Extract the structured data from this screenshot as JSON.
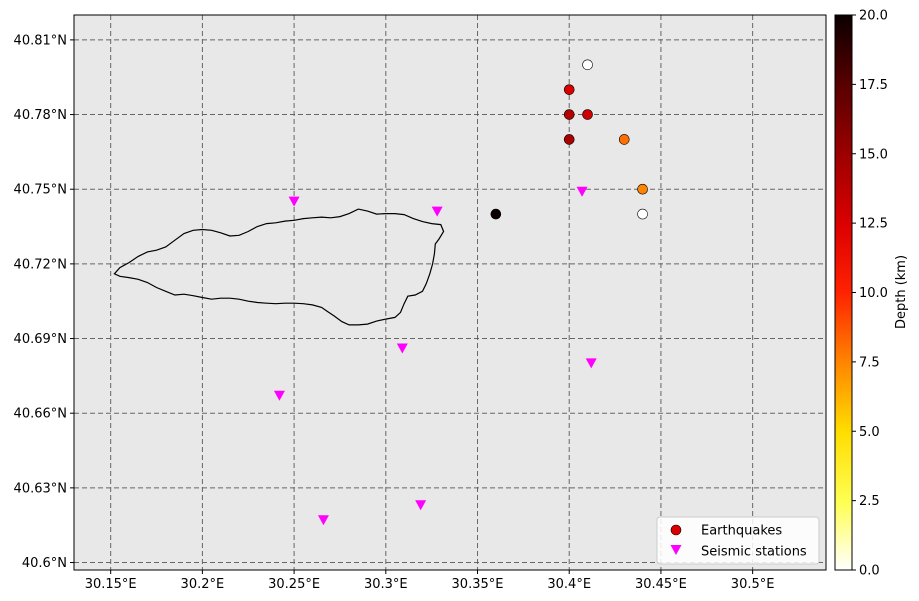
{
  "chart_data": {
    "type": "scatter",
    "title": "",
    "xlim": [
      30.13,
      30.54
    ],
    "ylim": [
      40.597,
      40.82
    ],
    "x_ticks": [
      30.15,
      30.2,
      30.25,
      30.3,
      30.35,
      30.4,
      30.45,
      30.5
    ],
    "x_tick_labels": [
      "30.15°E",
      "30.2°E",
      "30.25°E",
      "30.3°E",
      "30.35°E",
      "30.4°E",
      "30.45°E",
      "30.5°E"
    ],
    "y_ticks": [
      40.6,
      40.63,
      40.66,
      40.69,
      40.72,
      40.75,
      40.78,
      40.81
    ],
    "y_tick_labels": [
      "40.6°N",
      "40.63°N",
      "40.66°N",
      "40.69°N",
      "40.72°N",
      "40.75°N",
      "40.78°N",
      "40.81°N"
    ],
    "grid": true,
    "background": "#e8e8e8",
    "series": [
      {
        "name": "Earthquakes",
        "marker": "circle",
        "color_by": "depth",
        "points": [
          {
            "lon": 30.41,
            "lat": 40.8,
            "depth": 0.0
          },
          {
            "lon": 30.4,
            "lat": 40.79,
            "depth": 12.5
          },
          {
            "lon": 30.4,
            "lat": 40.78,
            "depth": 14.0
          },
          {
            "lon": 30.41,
            "lat": 40.78,
            "depth": 13.0
          },
          {
            "lon": 30.4,
            "lat": 40.77,
            "depth": 14.5
          },
          {
            "lon": 30.43,
            "lat": 40.77,
            "depth": 8.0
          },
          {
            "lon": 30.44,
            "lat": 40.75,
            "depth": 7.5
          },
          {
            "lon": 30.36,
            "lat": 40.74,
            "depth": 20.0
          },
          {
            "lon": 30.44,
            "lat": 40.74,
            "depth": 0.0
          }
        ]
      },
      {
        "name": "Seismic stations",
        "marker": "triangle-down",
        "color": "#ff00ff",
        "points": [
          {
            "lon": 30.25,
            "lat": 40.745
          },
          {
            "lon": 30.328,
            "lat": 40.741
          },
          {
            "lon": 30.407,
            "lat": 40.749
          },
          {
            "lon": 30.309,
            "lat": 40.686
          },
          {
            "lon": 30.412,
            "lat": 40.68
          },
          {
            "lon": 30.242,
            "lat": 40.667
          },
          {
            "lon": 30.319,
            "lat": 40.623
          },
          {
            "lon": 30.266,
            "lat": 40.617
          }
        ]
      }
    ],
    "outline": [
      [
        30.152,
        40.716
      ],
      [
        30.155,
        40.7185
      ],
      [
        30.16,
        40.7205
      ],
      [
        30.165,
        40.723
      ],
      [
        30.17,
        40.7248
      ],
      [
        30.175,
        40.7255
      ],
      [
        30.18,
        40.7268
      ],
      [
        30.185,
        40.7295
      ],
      [
        30.19,
        40.7322
      ],
      [
        30.195,
        40.7335
      ],
      [
        30.2,
        40.7338
      ],
      [
        30.205,
        40.7335
      ],
      [
        30.21,
        40.7325
      ],
      [
        30.215,
        40.7312
      ],
      [
        30.22,
        40.7315
      ],
      [
        30.225,
        40.733
      ],
      [
        30.23,
        40.735
      ],
      [
        30.235,
        40.7362
      ],
      [
        30.24,
        40.7365
      ],
      [
        30.245,
        40.7372
      ],
      [
        30.25,
        40.7375
      ],
      [
        30.255,
        40.7382
      ],
      [
        30.26,
        40.7385
      ],
      [
        30.265,
        40.7388
      ],
      [
        30.27,
        40.7385
      ],
      [
        30.275,
        40.739
      ],
      [
        30.28,
        40.7402
      ],
      [
        30.285,
        40.742
      ],
      [
        30.29,
        40.7412
      ],
      [
        30.295,
        40.74
      ],
      [
        30.3,
        40.7402
      ],
      [
        30.305,
        40.7402
      ],
      [
        30.31,
        40.7398
      ],
      [
        30.315,
        40.7382
      ],
      [
        30.32,
        40.737
      ],
      [
        30.325,
        40.7362
      ],
      [
        30.33,
        40.7358
      ],
      [
        30.3315,
        40.733
      ],
      [
        30.329,
        40.73
      ],
      [
        30.327,
        40.728
      ],
      [
        30.3265,
        40.724
      ],
      [
        30.3255,
        40.72
      ],
      [
        30.324,
        40.716
      ],
      [
        30.322,
        40.712
      ],
      [
        30.32,
        40.709
      ],
      [
        30.316,
        40.7075
      ],
      [
        30.312,
        40.707
      ],
      [
        30.31,
        40.704
      ],
      [
        30.308,
        40.7005
      ],
      [
        30.305,
        40.6985
      ],
      [
        30.3,
        40.6978
      ],
      [
        30.295,
        40.697
      ],
      [
        30.29,
        40.6958
      ],
      [
        30.285,
        40.6955
      ],
      [
        30.28,
        40.6955
      ],
      [
        30.276,
        40.6968
      ],
      [
        30.272,
        40.699
      ],
      [
        30.268,
        40.701
      ],
      [
        30.265,
        40.7025
      ],
      [
        30.26,
        40.7035
      ],
      [
        30.255,
        40.704
      ],
      [
        30.25,
        40.7042
      ],
      [
        30.245,
        40.7042
      ],
      [
        30.24,
        40.704
      ],
      [
        30.235,
        40.7042
      ],
      [
        30.23,
        40.7045
      ],
      [
        30.225,
        40.705
      ],
      [
        30.22,
        40.7058
      ],
      [
        30.215,
        40.7062
      ],
      [
        30.21,
        40.7062
      ],
      [
        30.205,
        40.7058
      ],
      [
        30.2,
        40.7065
      ],
      [
        30.195,
        40.7072
      ],
      [
        30.19,
        40.7078
      ],
      [
        30.185,
        40.7075
      ],
      [
        30.18,
        40.709
      ],
      [
        30.175,
        40.7105
      ],
      [
        30.17,
        40.7125
      ],
      [
        30.165,
        40.7138
      ],
      [
        30.16,
        40.7145
      ],
      [
        30.155,
        40.715
      ],
      [
        30.152,
        40.716
      ]
    ],
    "colorbar": {
      "label": "Depth (km)",
      "range": [
        0,
        20
      ],
      "ticks": [
        0.0,
        2.5,
        5.0,
        7.5,
        10.0,
        12.5,
        15.0,
        17.5,
        20.0
      ],
      "tick_labels": [
        "0.0",
        "2.5",
        "5.0",
        "7.5",
        "10.0",
        "12.5",
        "15.0",
        "17.5",
        "20.0"
      ],
      "colormap": "hot_r"
    },
    "legend": {
      "position": "bottom-right",
      "entries": [
        "Earthquakes",
        "Seismic stations"
      ]
    }
  }
}
